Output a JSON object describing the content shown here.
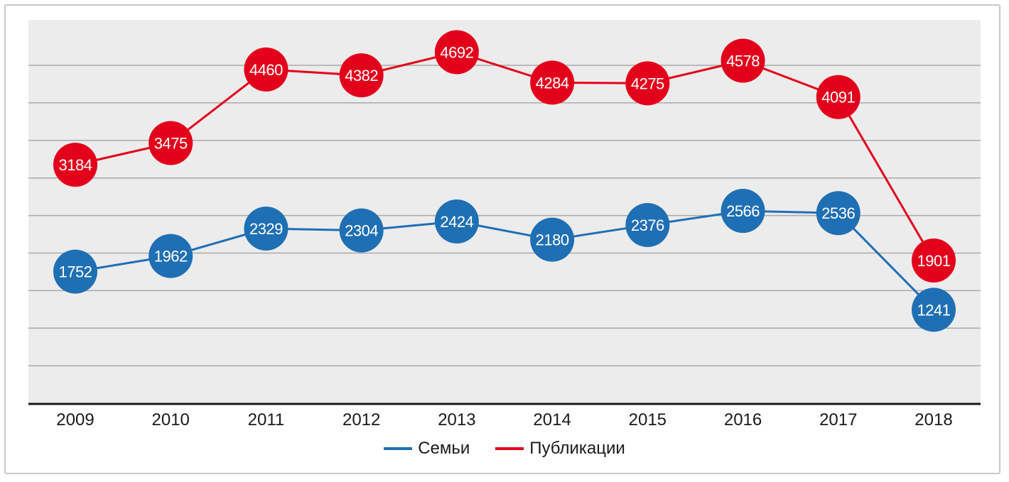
{
  "chart_data": {
    "type": "line",
    "categories": [
      "2009",
      "2010",
      "2011",
      "2012",
      "2013",
      "2014",
      "2015",
      "2016",
      "2017",
      "2018"
    ],
    "series": [
      {
        "name": "Семьи",
        "color": "#1f6fb4",
        "values": [
          1752,
          1962,
          2329,
          2304,
          2424,
          2180,
          2376,
          2566,
          2536,
          1241
        ]
      },
      {
        "name": "Публикации",
        "color": "#e3001b",
        "values": [
          3184,
          3475,
          4460,
          4382,
          4692,
          4284,
          4275,
          4578,
          4091,
          1901
        ]
      }
    ],
    "data_labels": true,
    "legend_position": "bottom",
    "grid": true,
    "title": "",
    "xlabel": "",
    "ylabel": ""
  }
}
